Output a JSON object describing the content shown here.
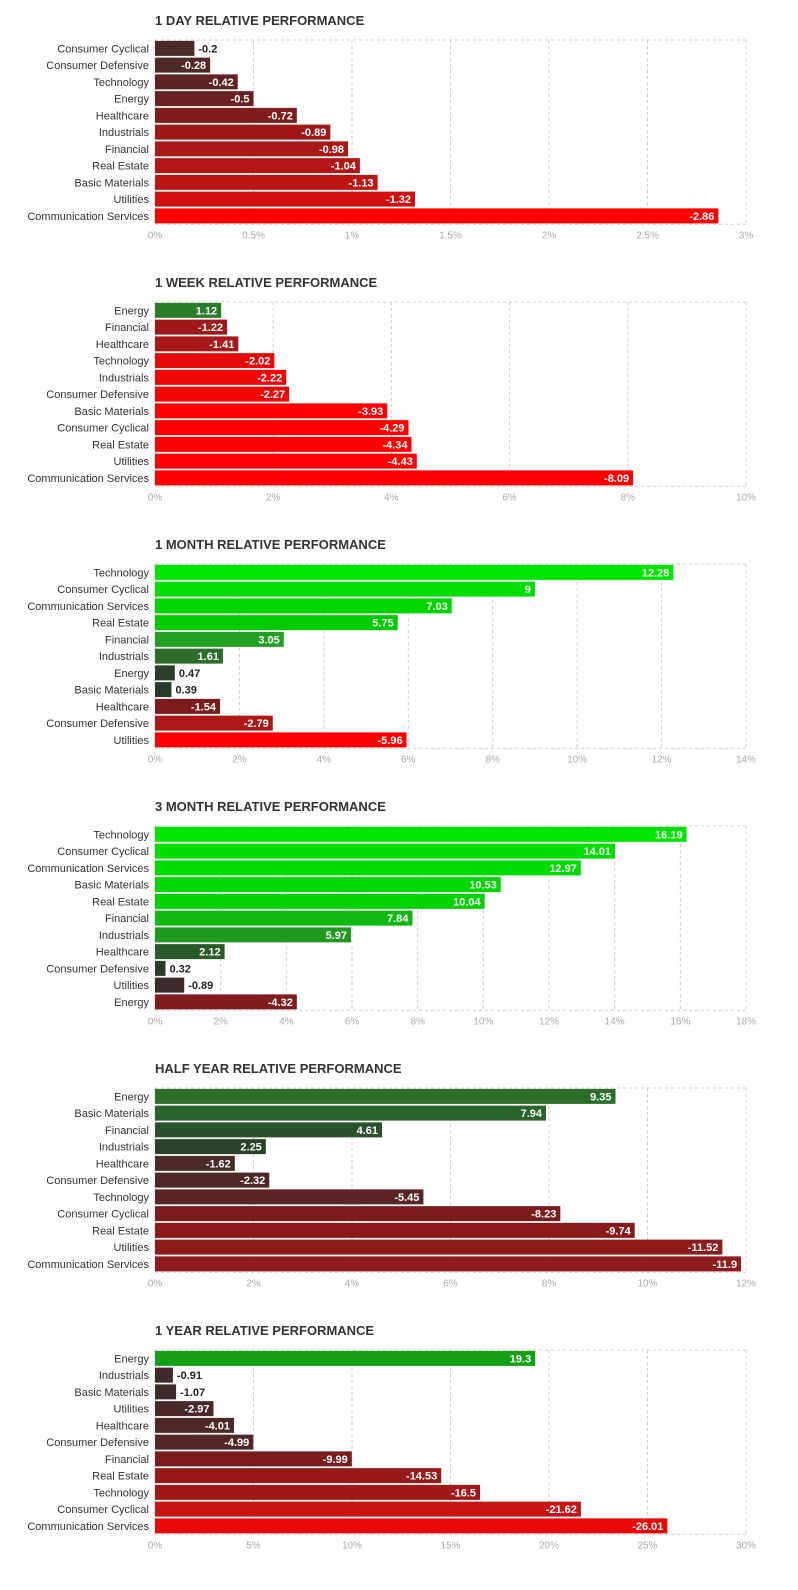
{
  "chart_data": [
    {
      "type": "bar",
      "orientation": "horizontal",
      "title": "1 DAY RELATIVE PERFORMANCE",
      "xlim": [
        0,
        3
      ],
      "ticks": [
        0,
        0.5,
        1,
        1.5,
        2,
        2.5,
        3
      ],
      "tick_labels": [
        "0%",
        "0.5%",
        "1%",
        "1.5%",
        "2%",
        "2.5%",
        "3%"
      ],
      "categories": [
        "Consumer Cyclical",
        "Consumer Defensive",
        "Technology",
        "Energy",
        "Healthcare",
        "Industrials",
        "Financial",
        "Real Estate",
        "Basic Materials",
        "Utilities",
        "Communication Services"
      ],
      "values": [
        -0.2,
        -0.28,
        -0.42,
        -0.5,
        -0.72,
        -0.89,
        -0.98,
        -1.04,
        -1.13,
        -1.32,
        -2.86
      ],
      "value_labels": [
        "-0.2",
        "-0.28",
        "-0.42",
        "-0.5",
        "-0.72",
        "-0.89",
        "-0.98",
        "-1.04",
        "-1.13",
        "-1.32",
        "-2.86"
      ],
      "bar_colors": [
        "#4a2a2a",
        "#4f2828",
        "#5e2424",
        "#6a2121",
        "#7f1c1c",
        "#a01818",
        "#a81818",
        "#b21616",
        "#bd1414",
        "#d21010",
        "#ff0000"
      ],
      "label_inside": [
        false,
        true,
        true,
        true,
        true,
        true,
        true,
        true,
        true,
        true,
        true
      ]
    },
    {
      "type": "bar",
      "orientation": "horizontal",
      "title": "1 WEEK RELATIVE PERFORMANCE",
      "xlim": [
        0,
        10
      ],
      "ticks": [
        0,
        2,
        4,
        6,
        8,
        10
      ],
      "tick_labels": [
        "0%",
        "2%",
        "4%",
        "6%",
        "8%",
        "10%"
      ],
      "categories": [
        "Energy",
        "Financial",
        "Healthcare",
        "Technology",
        "Industrials",
        "Consumer Defensive",
        "Basic Materials",
        "Consumer Cyclical",
        "Real Estate",
        "Utilities",
        "Communication Services"
      ],
      "values": [
        1.12,
        -1.22,
        -1.41,
        -2.02,
        -2.22,
        -2.27,
        -3.93,
        -4.29,
        -4.34,
        -4.43,
        -8.09
      ],
      "value_labels": [
        "1.12",
        "-1.22",
        "-1.41",
        "-2.02",
        "-2.22",
        "-2.27",
        "-3.93",
        "-4.29",
        "-4.34",
        "-4.43",
        "-8.09"
      ],
      "bar_colors": [
        "#2a7d2a",
        "#a01818",
        "#a81818",
        "#e60a0a",
        "#f00606",
        "#f20505",
        "#ff0000",
        "#ff0000",
        "#ff0000",
        "#ff0000",
        "#ff0000"
      ],
      "label_inside": [
        true,
        true,
        true,
        true,
        true,
        true,
        true,
        true,
        true,
        true,
        true
      ]
    },
    {
      "type": "bar",
      "orientation": "horizontal",
      "title": "1 MONTH RELATIVE PERFORMANCE",
      "xlim": [
        0,
        14
      ],
      "ticks": [
        0,
        2,
        4,
        6,
        8,
        10,
        12,
        14
      ],
      "tick_labels": [
        "0%",
        "2%",
        "4%",
        "6%",
        "8%",
        "10%",
        "12%",
        "14%"
      ],
      "categories": [
        "Technology",
        "Consumer Cyclical",
        "Communication Services",
        "Real Estate",
        "Financial",
        "Industrials",
        "Energy",
        "Basic Materials",
        "Healthcare",
        "Consumer Defensive",
        "Utilities"
      ],
      "values": [
        12.28,
        9,
        7.03,
        5.75,
        3.05,
        1.61,
        0.47,
        0.39,
        -1.54,
        -2.79,
        -5.96
      ],
      "value_labels": [
        "12.28",
        "9",
        "7.03",
        "5.75",
        "3.05",
        "1.61",
        "0.47",
        "0.39",
        "-1.54",
        "-2.79",
        "-5.96"
      ],
      "bar_colors": [
        "#00e600",
        "#00e000",
        "#00d600",
        "#00cc00",
        "#21a021",
        "#2a6e2a",
        "#2a3e2a",
        "#2a3a2a",
        "#7a1c1c",
        "#b01818",
        "#ff0000"
      ],
      "label_inside": [
        true,
        true,
        true,
        true,
        true,
        true,
        false,
        false,
        true,
        true,
        true
      ]
    },
    {
      "type": "bar",
      "orientation": "horizontal",
      "title": "3 MONTH RELATIVE PERFORMANCE",
      "xlim": [
        0,
        18
      ],
      "ticks": [
        0,
        2,
        4,
        6,
        8,
        10,
        12,
        14,
        16,
        18
      ],
      "tick_labels": [
        "0%",
        "2%",
        "4%",
        "6%",
        "8%",
        "10%",
        "12%",
        "14%",
        "16%",
        "18%"
      ],
      "categories": [
        "Technology",
        "Consumer Cyclical",
        "Communication Services",
        "Basic Materials",
        "Real Estate",
        "Financial",
        "Industrials",
        "Healthcare",
        "Consumer Defensive",
        "Utilities",
        "Energy"
      ],
      "values": [
        16.19,
        14.01,
        12.97,
        10.53,
        10.04,
        7.84,
        5.97,
        2.12,
        0.32,
        -0.89,
        -4.32
      ],
      "value_labels": [
        "16.19",
        "14.01",
        "12.97",
        "10.53",
        "10.04",
        "7.84",
        "5.97",
        "2.12",
        "0.32",
        "-0.89",
        "-4.32"
      ],
      "bar_colors": [
        "#00e600",
        "#00e000",
        "#00dc00",
        "#00d800",
        "#00d400",
        "#12b812",
        "#1f9a1f",
        "#2a5a2a",
        "#2e3a2e",
        "#3d2a2a",
        "#7f1c1c"
      ],
      "label_inside": [
        true,
        true,
        true,
        true,
        true,
        true,
        true,
        true,
        false,
        false,
        true
      ]
    },
    {
      "type": "bar",
      "orientation": "horizontal",
      "title": "HALF YEAR RELATIVE PERFORMANCE",
      "xlim": [
        0,
        12
      ],
      "ticks": [
        0,
        2,
        4,
        6,
        8,
        10,
        12
      ],
      "tick_labels": [
        "0%",
        "2%",
        "4%",
        "6%",
        "8%",
        "10%",
        "12%"
      ],
      "categories": [
        "Energy",
        "Basic Materials",
        "Financial",
        "Industrials",
        "Healthcare",
        "Consumer Defensive",
        "Technology",
        "Consumer Cyclical",
        "Real Estate",
        "Utilities",
        "Communication Services"
      ],
      "values": [
        9.35,
        7.94,
        4.61,
        2.25,
        -1.62,
        -2.32,
        -5.45,
        -8.23,
        -9.74,
        -11.52,
        -11.9
      ],
      "value_labels": [
        "9.35",
        "7.94",
        "4.61",
        "2.25",
        "-1.62",
        "-2.32",
        "-5.45",
        "-8.23",
        "-9.74",
        "-11.52",
        "-11.9"
      ],
      "bar_colors": [
        "#2a6e2a",
        "#2a642a",
        "#2a522a",
        "#2a422a",
        "#4a2a2a",
        "#4e2828",
        "#5c2424",
        "#7a1c1c",
        "#8a1a1a",
        "#8f1a1a",
        "#911a1a"
      ],
      "label_inside": [
        true,
        true,
        true,
        true,
        true,
        true,
        true,
        true,
        true,
        true,
        true
      ]
    },
    {
      "type": "bar",
      "orientation": "horizontal",
      "title": "1 YEAR RELATIVE PERFORMANCE",
      "xlim": [
        0,
        30
      ],
      "ticks": [
        0,
        5,
        10,
        15,
        20,
        25,
        30
      ],
      "tick_labels": [
        "0%",
        "5%",
        "10%",
        "15%",
        "20%",
        "25%",
        "30%"
      ],
      "categories": [
        "Energy",
        "Industrials",
        "Basic Materials",
        "Utilities",
        "Healthcare",
        "Consumer Defensive",
        "Financial",
        "Real Estate",
        "Technology",
        "Consumer Cyclical",
        "Communication Services"
      ],
      "values": [
        19.3,
        -0.91,
        -1.07,
        -2.97,
        -4.01,
        -4.99,
        -9.99,
        -14.53,
        -16.5,
        -21.62,
        -26.01
      ],
      "value_labels": [
        "19.3",
        "-0.91",
        "-1.07",
        "-2.97",
        "-4.01",
        "-4.99",
        "-9.99",
        "-14.53",
        "-16.5",
        "-21.62",
        "-26.01"
      ],
      "bar_colors": [
        "#14a014",
        "#3e2a2a",
        "#402a2a",
        "#482828",
        "#4c2828",
        "#522626",
        "#7a1c1c",
        "#961919",
        "#a01818",
        "#c81414",
        "#e80808"
      ],
      "label_inside": [
        true,
        false,
        false,
        true,
        true,
        true,
        true,
        true,
        true,
        true,
        true
      ]
    }
  ]
}
